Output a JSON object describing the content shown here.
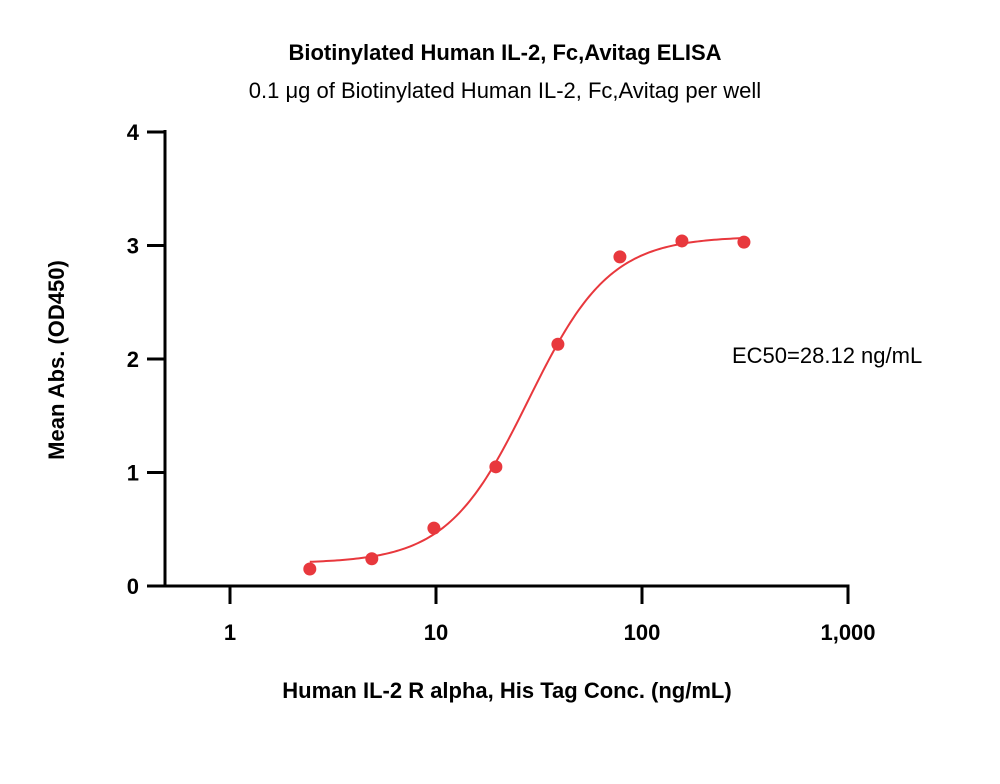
{
  "chart_data": {
    "type": "scatter",
    "title": "Biotinylated Human IL-2, Fc,Avitag ELISA",
    "subtitle": "0.1 μg of Biotinylated Human IL-2, Fc,Avitag per well",
    "xlabel": "Human IL-2 R alpha, His Tag Conc. (ng/mL)",
    "ylabel": "Mean Abs. (OD450)",
    "x_scale": "log10",
    "xlim": [
      0.4,
      1000
    ],
    "ylim": [
      0,
      4
    ],
    "x_ticks": [
      1,
      10,
      100,
      1000
    ],
    "x_tick_labels": [
      "1",
      "10",
      "100",
      "1,000"
    ],
    "y_ticks": [
      0,
      1,
      2,
      3,
      4
    ],
    "y_tick_labels": [
      "0",
      "1",
      "2",
      "3",
      "4"
    ],
    "grid": false,
    "legend": "none",
    "series": [
      {
        "color": "#e8383d",
        "points": [
          {
            "x": 2.44,
            "y": 0.15
          },
          {
            "x": 4.88,
            "y": 0.24
          },
          {
            "x": 9.77,
            "y": 0.51
          },
          {
            "x": 19.53,
            "y": 1.05
          },
          {
            "x": 39.06,
            "y": 2.13
          },
          {
            "x": 78.13,
            "y": 2.9
          },
          {
            "x": 156.25,
            "y": 3.04
          },
          {
            "x": 312.5,
            "y": 3.03
          }
        ],
        "fit": {
          "model": "4PL",
          "bottom": 0.2,
          "top": 3.08,
          "ec50": 28.12,
          "hill": 2.2,
          "x_range": [
            2.44,
            312.5
          ]
        }
      }
    ],
    "annotations": [
      {
        "text": "EC50=28.12 ng/mL"
      }
    ]
  }
}
